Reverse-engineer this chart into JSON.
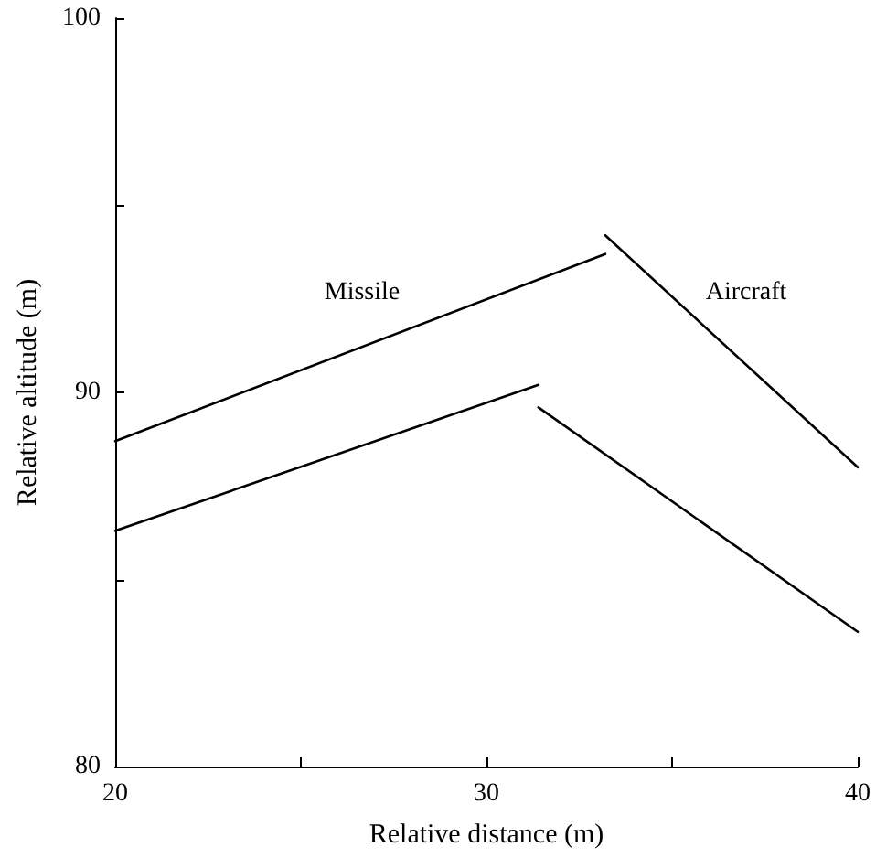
{
  "chart_data": {
    "type": "line",
    "xlabel": "Relative distance (m)",
    "ylabel": "Relative altitude (m)",
    "xlim": [
      20,
      40
    ],
    "xticks": [
      20,
      {
        "value": 25,
        "label": null
      },
      30,
      {
        "value": 35,
        "label": null
      },
      40
    ],
    "ylim": [
      80,
      100
    ],
    "yticks": [
      80,
      {
        "value": 85,
        "label": null
      },
      90,
      {
        "value": 95,
        "label": null
      },
      100
    ],
    "grid": false,
    "marker": "none",
    "line_style": "solid",
    "series": [
      {
        "color": "#000000",
        "x": [
          20,
          33.2
        ],
        "values": [
          88.7,
          93.7
        ]
      },
      {
        "color": "#000000",
        "x": [
          20,
          31.4
        ],
        "values": [
          86.3,
          90.2
        ]
      },
      {
        "color": "#000000",
        "x": [
          33.2,
          40
        ],
        "values": [
          94.2,
          88.0
        ]
      },
      {
        "color": "#000000",
        "x": [
          31.4,
          40
        ],
        "values": [
          89.6,
          83.6
        ]
      }
    ],
    "annotations": [
      "Missile",
      "Aircraft"
    ]
  }
}
